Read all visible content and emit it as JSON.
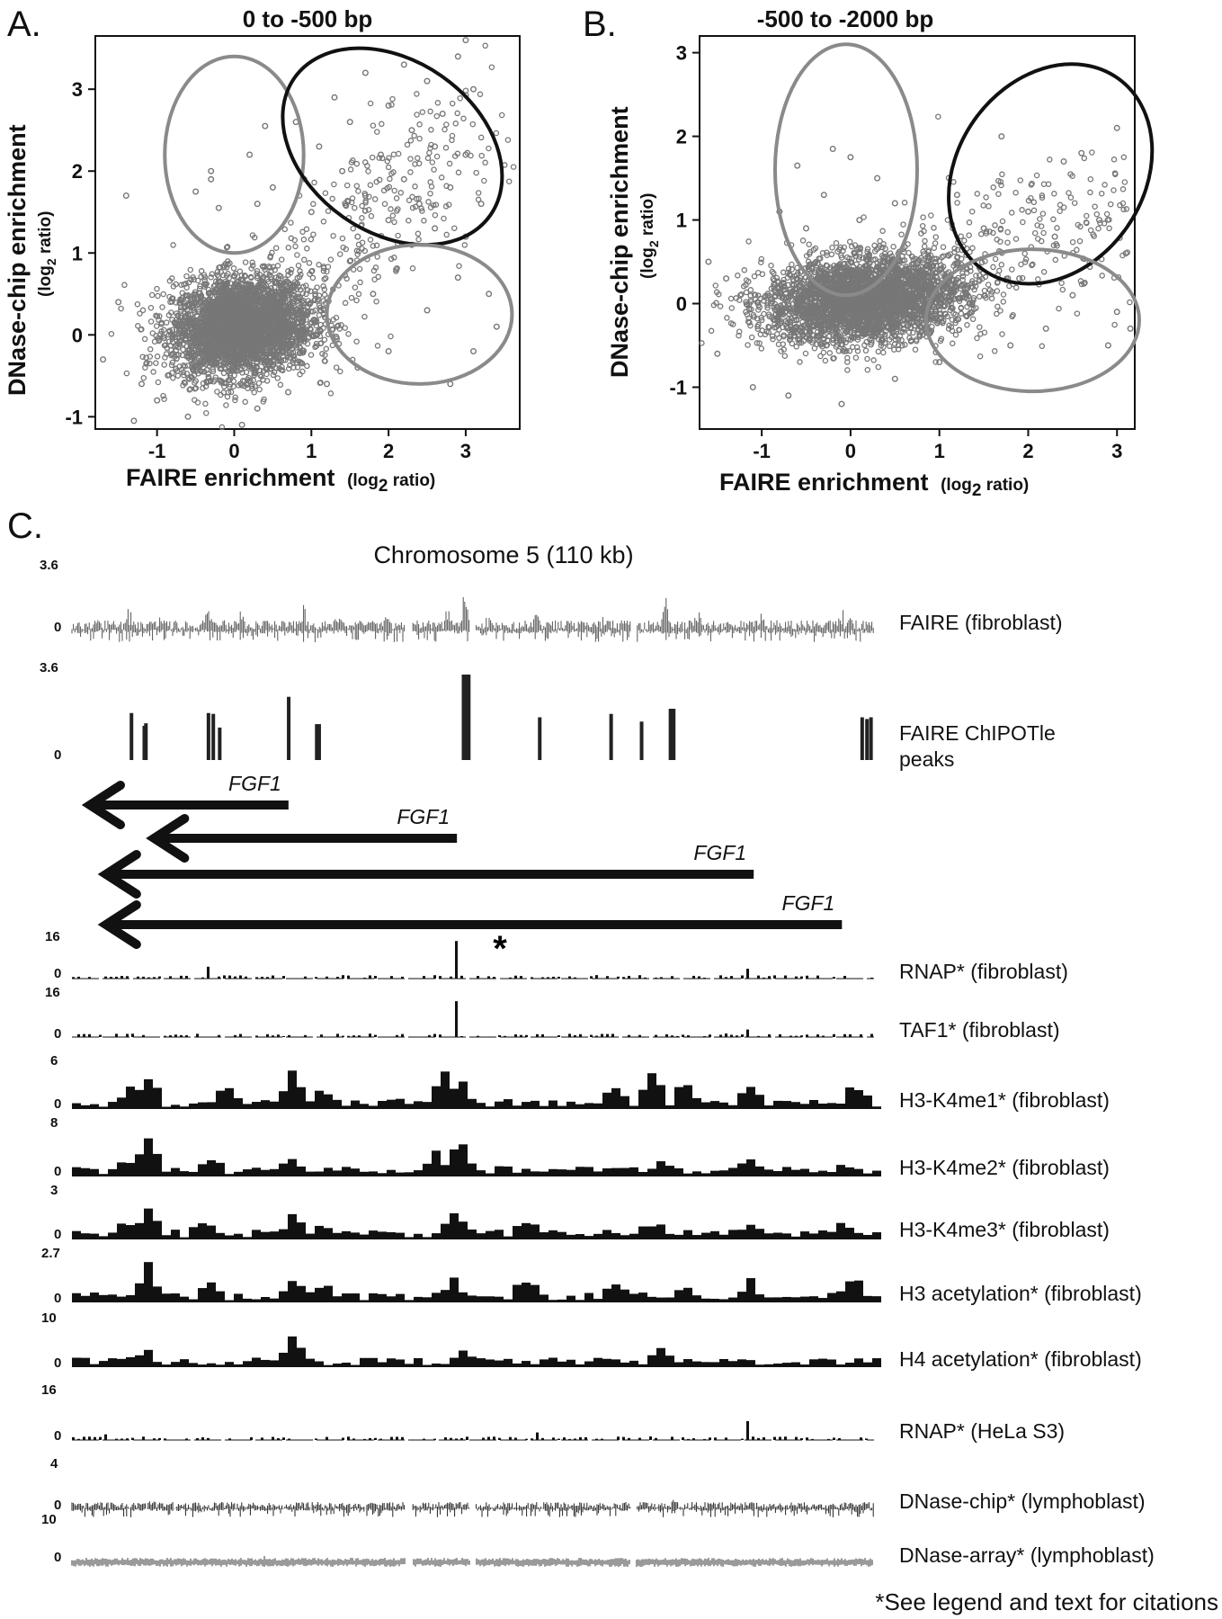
{
  "panels": {
    "a": {
      "letter": "A.",
      "title": "0 to -500 bp"
    },
    "b": {
      "letter": "B.",
      "title": "-500 to -2000 bp"
    },
    "c": {
      "letter": "C.",
      "title": "Chromosome 5 (110 kb)"
    }
  },
  "scatter_axes": {
    "xlabel_main": "FAIRE enrichment",
    "xlabel_sub": "(log",
    "xlabel_sub_index": "2",
    "xlabel_sub_end": " ratio)",
    "ylabel_main": "DNase-chip enrichment",
    "ylabel_sub": "(log",
    "ylabel_sub_index": "2",
    "ylabel_sub_end": " ratio)"
  },
  "chart_data": [
    {
      "type": "scatter",
      "title": "0 to -500 bp",
      "xlabel": "FAIRE enrichment (log2 ratio)",
      "ylabel": "DNase-chip enrichment (log2 ratio)",
      "xlim": [
        -1.8,
        3.7
      ],
      "ylim": [
        -1.15,
        3.65
      ],
      "xticks": [
        -1,
        0,
        1,
        2,
        3
      ],
      "yticks": [
        -1,
        0,
        1,
        2,
        3
      ],
      "point_color": "#777777",
      "dense_cluster": {
        "x_center": 0.1,
        "y_center": 0.1,
        "x_spread": 0.45,
        "y_spread": 0.3
      },
      "outlier_points": [
        [
          3.0,
          3.6
        ],
        [
          2.9,
          3.4
        ],
        [
          2.2,
          3.3
        ],
        [
          1.7,
          3.2
        ],
        [
          2.5,
          3.1
        ],
        [
          3.1,
          3.0
        ],
        [
          1.3,
          2.9
        ],
        [
          2.0,
          2.8
        ],
        [
          2.7,
          2.7
        ],
        [
          1.5,
          2.6
        ],
        [
          2.3,
          2.5
        ],
        [
          0.4,
          2.55
        ],
        [
          1.1,
          2.3
        ],
        [
          1.9,
          2.2
        ],
        [
          2.6,
          2.3
        ],
        [
          3.0,
          2.2
        ],
        [
          1.4,
          2.0
        ],
        [
          2.2,
          1.9
        ],
        [
          2.8,
          1.8
        ],
        [
          1.7,
          1.7
        ],
        [
          2.4,
          1.6
        ],
        [
          3.2,
          1.6
        ],
        [
          1.0,
          1.5
        ],
        [
          2.0,
          1.4
        ],
        [
          2.6,
          1.3
        ],
        [
          1.6,
          1.2
        ],
        [
          2.3,
          1.1
        ],
        [
          3.0,
          1.2
        ],
        [
          -0.5,
          1.75
        ],
        [
          -0.3,
          1.9
        ],
        [
          0.2,
          2.2
        ],
        [
          0.5,
          1.8
        ],
        [
          -1.4,
          1.7
        ],
        [
          -0.2,
          1.55
        ],
        [
          0.3,
          1.6
        ],
        [
          1.5,
          0.9
        ],
        [
          2.1,
          0.8
        ],
        [
          2.9,
          0.7
        ],
        [
          3.3,
          0.5
        ],
        [
          1.8,
          0.5
        ],
        [
          2.5,
          0.3
        ],
        [
          3.1,
          -0.2
        ],
        [
          2.0,
          -0.2
        ],
        [
          1.6,
          -0.4
        ],
        [
          2.8,
          -0.6
        ],
        [
          3.4,
          0.1
        ],
        [
          -1.7,
          -0.3
        ],
        [
          -1.5,
          0.4
        ],
        [
          -1.2,
          -0.6
        ],
        [
          -0.6,
          -1.0
        ],
        [
          0.3,
          -0.9
        ],
        [
          -1.0,
          -0.8
        ],
        [
          0.1,
          -1.1
        ],
        [
          0.7,
          -0.7
        ],
        [
          1.2,
          -0.6
        ],
        [
          -1.3,
          -1.05
        ],
        [
          -0.3,
          2.0
        ],
        [
          0.8,
          2.6
        ]
      ],
      "ellipses": [
        {
          "color": "#8a8a8a",
          "cx": 0.0,
          "cy": 2.2,
          "rx": 0.9,
          "ry": 1.2
        },
        {
          "color": "#111111",
          "cx": 2.05,
          "cy": 2.3,
          "rx": 1.55,
          "ry": 1.05
        },
        {
          "color": "#8a8a8a",
          "cx": 2.4,
          "cy": 0.25,
          "rx": 1.2,
          "ry": 0.85
        }
      ]
    },
    {
      "type": "scatter",
      "title": "-500 to -2000 bp",
      "xlabel": "FAIRE enrichment (log2 ratio)",
      "ylabel": "DNase-chip enrichment (log2 ratio)",
      "xlim": [
        -1.7,
        3.2
      ],
      "ylim": [
        -1.5,
        3.2
      ],
      "xticks": [
        -1,
        0,
        1,
        2,
        3
      ],
      "yticks": [
        -1,
        0,
        1,
        2,
        3
      ],
      "point_color": "#777777",
      "dense_cluster": {
        "x_center": 0.15,
        "y_center": 0.05,
        "x_spread": 0.55,
        "y_spread": 0.25
      },
      "outlier_points": [
        [
          -0.2,
          1.85
        ],
        [
          0.0,
          1.75
        ],
        [
          -0.6,
          1.65
        ],
        [
          0.3,
          1.5
        ],
        [
          -0.3,
          1.3
        ],
        [
          0.5,
          1.2
        ],
        [
          -0.8,
          1.1
        ],
        [
          0.1,
          1.0
        ],
        [
          -0.5,
          0.9
        ],
        [
          1.7,
          2.0
        ],
        [
          2.6,
          1.8
        ],
        [
          2.4,
          1.7
        ],
        [
          3.0,
          2.1
        ],
        [
          1.2,
          1.3
        ],
        [
          2.0,
          1.1
        ],
        [
          2.8,
          1.0
        ],
        [
          1.5,
          0.9
        ],
        [
          2.3,
          0.8
        ],
        [
          3.1,
          0.6
        ],
        [
          1.9,
          0.3
        ],
        [
          2.5,
          0.1
        ],
        [
          3.0,
          -0.1
        ],
        [
          2.2,
          -0.3
        ],
        [
          1.8,
          -0.5
        ],
        [
          2.9,
          -0.5
        ],
        [
          -1.6,
          0.5
        ],
        [
          -1.5,
          -0.6
        ],
        [
          -1.1,
          -1.0
        ],
        [
          -0.7,
          -1.1
        ],
        [
          -0.1,
          -1.2
        ],
        [
          0.5,
          -0.9
        ],
        [
          1.0,
          -0.7
        ],
        [
          -1.4,
          0.3
        ],
        [
          3.15,
          -0.3
        ]
      ],
      "ellipses": [
        {
          "color": "#8a8a8a",
          "cx": -0.05,
          "cy": 1.6,
          "rx": 0.8,
          "ry": 1.5
        },
        {
          "color": "#111111",
          "cx": 2.25,
          "cy": 1.55,
          "rx": 1.05,
          "ry": 1.4
        },
        {
          "color": "#8a8a8a",
          "cx": 2.05,
          "cy": -0.2,
          "rx": 1.2,
          "ry": 0.85
        }
      ]
    },
    {
      "type": "bar",
      "title": "Chromosome 5 (110 kb)",
      "tracks": [
        {
          "name": "FAIRE (fibroblast)",
          "scale_max": "3.6",
          "scale_min": "0",
          "style": "signal",
          "color": "#555555",
          "peaks": [
            [
              0.07,
              0.55
            ],
            [
              0.11,
              0.25
            ],
            [
              0.17,
              0.3
            ],
            [
              0.21,
              0.4
            ],
            [
              0.29,
              0.45
            ],
            [
              0.33,
              0.3
            ],
            [
              0.39,
              0.35
            ],
            [
              0.47,
              0.6
            ],
            [
              0.49,
              1.0
            ],
            [
              0.52,
              0.3
            ],
            [
              0.58,
              0.35
            ],
            [
              0.66,
              0.35
            ],
            [
              0.7,
              0.3
            ],
            [
              0.74,
              0.6
            ],
            [
              0.78,
              0.3
            ],
            [
              0.86,
              0.35
            ],
            [
              0.96,
              0.45
            ],
            [
              0.97,
              0.3
            ]
          ]
        },
        {
          "name": "FAIRE ChIPOTle peaks",
          "scale_max": "3.6",
          "scale_min": "0",
          "style": "peaks",
          "color": "#222222",
          "peaks": [
            [
              0.072,
              0.55
            ],
            [
              0.088,
              0.4
            ],
            [
              0.09,
              0.43
            ],
            [
              0.168,
              0.55
            ],
            [
              0.174,
              0.54
            ],
            [
              0.182,
              0.38
            ],
            [
              0.268,
              0.74
            ],
            [
              0.303,
              0.42
            ],
            [
              0.306,
              0.42
            ],
            [
              0.486,
              1.0
            ],
            [
              0.488,
              1.0
            ],
            [
              0.581,
              0.5
            ],
            [
              0.67,
              0.54
            ],
            [
              0.708,
              0.45
            ],
            [
              0.744,
              0.6
            ],
            [
              0.748,
              0.6
            ],
            [
              0.983,
              0.5
            ],
            [
              0.989,
              0.48
            ],
            [
              0.994,
              0.5
            ]
          ]
        },
        {
          "name": "RNAP* (fibroblast)",
          "scale_max": "16",
          "scale_min": "0",
          "style": "bars",
          "color": "#111111",
          "peaks": [
            [
              0.17,
              0.3
            ],
            [
              0.27,
              0.25
            ],
            [
              0.48,
              0.95
            ],
            [
              0.84,
              0.25
            ]
          ]
        },
        {
          "name": "TAF1* (fibroblast)",
          "scale_max": "16",
          "scale_min": "0",
          "style": "bars",
          "color": "#111111",
          "peaks": [
            [
              0.48,
              0.95
            ],
            [
              0.84,
              0.2
            ]
          ]
        },
        {
          "name": "H3-K4me1* (fibroblast)",
          "scale_max": "6",
          "scale_min": "0",
          "style": "blocks",
          "color": "#111111",
          "peaks": [
            [
              0.07,
              0.55
            ],
            [
              0.09,
              0.65
            ],
            [
              0.19,
              0.45
            ],
            [
              0.27,
              0.7
            ],
            [
              0.31,
              0.35
            ],
            [
              0.46,
              0.7
            ],
            [
              0.48,
              0.5
            ],
            [
              0.67,
              0.4
            ],
            [
              0.72,
              0.75
            ],
            [
              0.76,
              0.55
            ],
            [
              0.84,
              0.45
            ],
            [
              0.97,
              0.5
            ]
          ]
        },
        {
          "name": "H3-K4me2* (fibroblast)",
          "scale_max": "8",
          "scale_min": "0",
          "style": "blocks",
          "color": "#111111",
          "peaks": [
            [
              0.06,
              0.2
            ],
            [
              0.09,
              0.8
            ],
            [
              0.17,
              0.25
            ],
            [
              0.27,
              0.3
            ],
            [
              0.45,
              0.4
            ],
            [
              0.48,
              0.7
            ],
            [
              0.73,
              0.2
            ],
            [
              0.84,
              0.25
            ],
            [
              0.96,
              0.15
            ]
          ]
        },
        {
          "name": "H3-K4me3* (fibroblast)",
          "scale_max": "3",
          "scale_min": "0",
          "style": "blocks",
          "color": "#111111",
          "peaks": [
            [
              0.06,
              0.3
            ],
            [
              0.09,
              0.75
            ],
            [
              0.16,
              0.3
            ],
            [
              0.27,
              0.5
            ],
            [
              0.31,
              0.25
            ],
            [
              0.47,
              0.6
            ],
            [
              0.56,
              0.35
            ],
            [
              0.72,
              0.25
            ],
            [
              0.84,
              0.25
            ],
            [
              0.96,
              0.3
            ]
          ]
        },
        {
          "name": "H3 acetylation* (fibroblast)",
          "scale_max": "2.7",
          "scale_min": "0",
          "style": "blocks",
          "color": "#111111",
          "peaks": [
            [
              0.09,
              0.75
            ],
            [
              0.17,
              0.4
            ],
            [
              0.27,
              0.5
            ],
            [
              0.31,
              0.35
            ],
            [
              0.47,
              0.5
            ],
            [
              0.56,
              0.45
            ],
            [
              0.67,
              0.3
            ],
            [
              0.76,
              0.35
            ],
            [
              0.84,
              0.4
            ],
            [
              0.97,
              0.45
            ]
          ]
        },
        {
          "name": "H4 acetylation* (fibroblast)",
          "scale_max": "10",
          "scale_min": "0",
          "style": "blocks",
          "color": "#111111",
          "peaks": [
            [
              0.07,
              0.15
            ],
            [
              0.09,
              0.2
            ],
            [
              0.27,
              0.7
            ],
            [
              0.48,
              0.35
            ],
            [
              0.73,
              0.3
            ]
          ]
        },
        {
          "name": "RNAP* (HeLa S3)",
          "scale_max": "16",
          "scale_min": "0",
          "style": "bars",
          "color": "#111111",
          "peaks": [
            [
              0.04,
              0.15
            ],
            [
              0.58,
              0.2
            ],
            [
              0.84,
              0.5
            ],
            [
              0.87,
              0.1
            ]
          ]
        },
        {
          "name": "DNase-chip* (lymphoblast)",
          "scale_max": "4",
          "scale_min": "0",
          "style": "thin",
          "color": "#222222",
          "peaks": [
            [
              0.1,
              0.2
            ],
            [
              0.5,
              0.25
            ],
            [
              0.75,
              0.2
            ]
          ]
        },
        {
          "name": "DNase-array* (lymphoblast)",
          "scale_max": "10",
          "scale_min": "0",
          "style": "gray",
          "color": "#9a9a9a",
          "peaks": [
            [
              0.24,
              0.3
            ]
          ]
        }
      ],
      "genes": [
        {
          "label": "FGF1",
          "start": 0.0,
          "end": 0.27
        },
        {
          "label": "FGF1",
          "start": 0.08,
          "end": 0.48
        },
        {
          "label": "FGF1",
          "start": 0.02,
          "end": 0.85
        },
        {
          "label": "FGF1",
          "start": 0.02,
          "end": 0.96
        }
      ],
      "gaps": [
        0.42,
        0.5,
        0.7
      ]
    }
  ],
  "track_labels": {
    "faire": "FAIRE (fibroblast)",
    "chipotle_1": "FAIRE ChIPOTle",
    "chipotle_2": "peaks",
    "rnap_fib": "RNAP* (fibroblast)",
    "taf1": "TAF1* (fibroblast)",
    "k4me1": "H3-K4me1* (fibroblast)",
    "k4me2": "H3-K4me2* (fibroblast)",
    "k4me3": "H3-K4me3* (fibroblast)",
    "h3ac": "H3 acetylation* (fibroblast)",
    "h4ac": "H4 acetylation* (fibroblast)",
    "rnap_hela": "RNAP* (HeLa S3)",
    "dnase_chip": "DNase-chip* (lymphoblast)",
    "dnase_array": "DNase-array* (lymphoblast)"
  },
  "scale_labels": {
    "faire_max": "3.6",
    "faire_min": "0",
    "chip_max": "3.6",
    "chip_min": "0",
    "rnap_max": "16",
    "rnap_min": "0",
    "taf_max": "16",
    "taf_min": "0",
    "k4me1_max": "6",
    "k4me1_min": "0",
    "k4me2_max": "8",
    "k4me2_min": "0",
    "k4me3_max": "3",
    "k4me3_min": "0",
    "h3ac_max": "2.7",
    "h3ac_min": "0",
    "h4ac_max": "10",
    "h4ac_min": "0",
    "hela_max": "16",
    "hela_min": "0",
    "dchip_max": "4",
    "dchip_min": "0",
    "darray_max": "10",
    "darray_min": "0"
  },
  "gene_labels": [
    "FGF1",
    "FGF1",
    "FGF1",
    "FGF1"
  ],
  "asterisk": "*",
  "footnote": "*See legend and text for citations"
}
